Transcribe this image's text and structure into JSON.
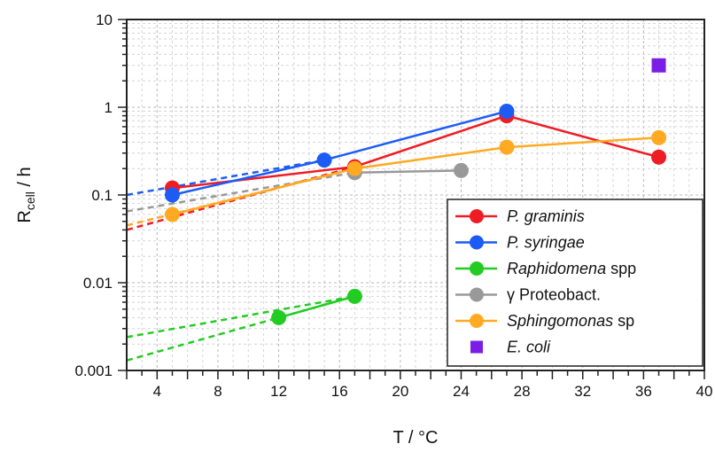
{
  "chart_data": {
    "type": "line",
    "xlabel": "T / °C",
    "ylabel": {
      "main": "R",
      "sub": "cell",
      "rest": " / h"
    },
    "xlim": [
      2,
      40
    ],
    "ylim": [
      0.001,
      10
    ],
    "yscale": "log",
    "grid": true,
    "legend_position": "bottom-right",
    "x_ticks": [
      {
        "value": 4,
        "label": "4"
      },
      {
        "value": 8,
        "label": "8"
      },
      {
        "value": 12,
        "label": "12"
      },
      {
        "value": 16,
        "label": "16"
      },
      {
        "value": 20,
        "label": "20"
      },
      {
        "value": 24,
        "label": "24"
      },
      {
        "value": 28,
        "label": "28"
      },
      {
        "value": 32,
        "label": "32"
      },
      {
        "value": 36,
        "label": "36"
      },
      {
        "value": 40,
        "label": "40"
      }
    ],
    "y_ticks": [
      {
        "value": 10,
        "label": "10"
      },
      {
        "value": 1,
        "label": "1"
      },
      {
        "value": 0.1,
        "label": "0.1"
      },
      {
        "value": 0.01,
        "label": "0.01"
      },
      {
        "value": 0.001,
        "label": "0.001"
      }
    ],
    "series": [
      {
        "name": "P. graminis",
        "name_italic": "P. graminis",
        "name_plain": "",
        "color": "#ee1c25",
        "marker": "circle",
        "points": [
          [
            5,
            0.12
          ],
          [
            17,
            0.21
          ],
          [
            27,
            0.8
          ],
          [
            37,
            0.27
          ]
        ],
        "extrapolation": [
          [
            2,
            0.04
          ],
          [
            17,
            0.21
          ]
        ]
      },
      {
        "name": "P. syringae",
        "name_italic": "P. syringae",
        "name_plain": "",
        "color": "#1c5cf5",
        "marker": "circle",
        "points": [
          [
            5,
            0.1
          ],
          [
            15,
            0.25
          ],
          [
            27,
            0.9
          ]
        ],
        "extrapolation": [
          [
            2,
            0.1
          ],
          [
            15,
            0.25
          ]
        ]
      },
      {
        "name": "Raphidomena spp",
        "name_italic": "Raphidomena",
        "name_plain": " spp",
        "color": "#22cc22",
        "marker": "circle",
        "points": [
          [
            12,
            0.004
          ],
          [
            17,
            0.007
          ]
        ],
        "extrapolation": [
          [
            2,
            0.0013
          ],
          [
            17,
            0.007
          ]
        ],
        "extrapolation2": [
          [
            2,
            0.0024
          ],
          [
            17,
            0.007
          ]
        ]
      },
      {
        "name": "γ Proteobact.",
        "name_italic": "",
        "name_plain": "γ Proteobact.",
        "color": "#999999",
        "marker": "circle",
        "points": [
          [
            17,
            0.18
          ],
          [
            24,
            0.19
          ]
        ],
        "extrapolation": [
          [
            2,
            0.065
          ],
          [
            17,
            0.18
          ]
        ]
      },
      {
        "name": "Sphingomonas sp",
        "name_italic": "Sphingomonas",
        "name_plain": " sp",
        "color": "#ffaa22",
        "marker": "circle",
        "points": [
          [
            5,
            0.06
          ],
          [
            17,
            0.2
          ],
          [
            27,
            0.35
          ],
          [
            37,
            0.45
          ]
        ],
        "extrapolation": [
          [
            2,
            0.045
          ],
          [
            17,
            0.2
          ]
        ]
      },
      {
        "name": "E. coli",
        "name_italic": "E. coli",
        "name_plain": "",
        "color": "#7a1ee6",
        "marker": "square",
        "points": [
          [
            37,
            3
          ]
        ]
      }
    ]
  }
}
